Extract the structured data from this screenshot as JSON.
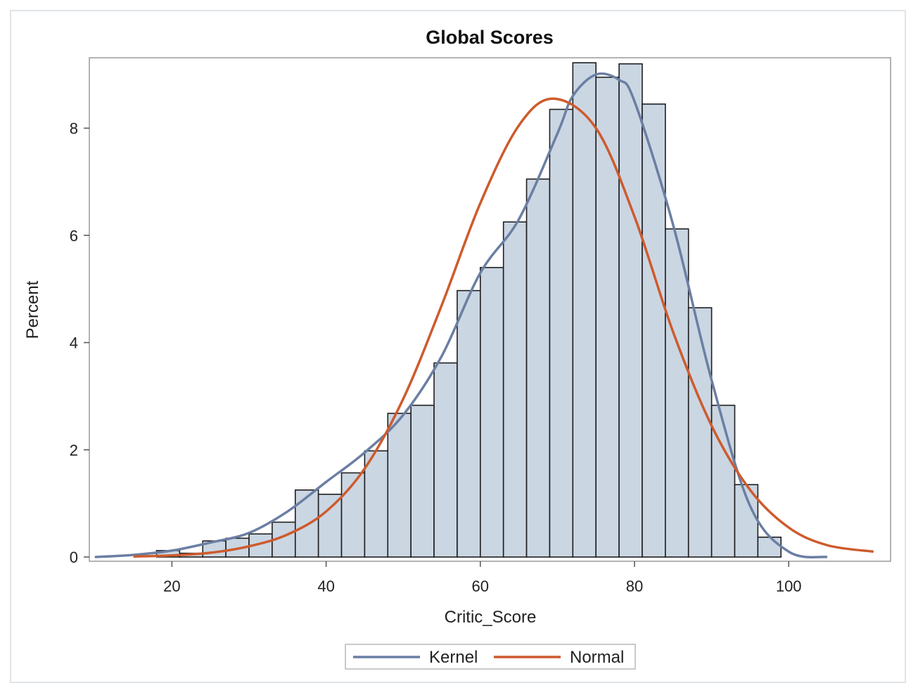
{
  "chart_data": {
    "type": "bar",
    "title": "Global Scores",
    "xlabel": "Critic_Score",
    "ylabel": "Percent",
    "xlim": [
      9,
      113
    ],
    "ylim": [
      0,
      9.3
    ],
    "xticks": [
      20,
      40,
      60,
      80,
      100
    ],
    "yticks": [
      0,
      2,
      4,
      6,
      8
    ],
    "grid": false,
    "legend_position": "bottom",
    "bin_width": 3,
    "bins": [
      {
        "start": 15,
        "end": 18,
        "value": 0.0
      },
      {
        "start": 18,
        "end": 21,
        "value": 0.12
      },
      {
        "start": 21,
        "end": 24,
        "value": 0.07
      },
      {
        "start": 24,
        "end": 27,
        "value": 0.3
      },
      {
        "start": 27,
        "end": 30,
        "value": 0.35
      },
      {
        "start": 30,
        "end": 33,
        "value": 0.43
      },
      {
        "start": 33,
        "end": 36,
        "value": 0.65
      },
      {
        "start": 36,
        "end": 39,
        "value": 1.25
      },
      {
        "start": 39,
        "end": 42,
        "value": 1.17
      },
      {
        "start": 42,
        "end": 45,
        "value": 1.57
      },
      {
        "start": 45,
        "end": 48,
        "value": 1.98
      },
      {
        "start": 48,
        "end": 51,
        "value": 2.68
      },
      {
        "start": 51,
        "end": 54,
        "value": 2.83
      },
      {
        "start": 54,
        "end": 57,
        "value": 3.62
      },
      {
        "start": 57,
        "end": 60,
        "value": 4.97
      },
      {
        "start": 60,
        "end": 63,
        "value": 5.4
      },
      {
        "start": 63,
        "end": 66,
        "value": 6.25
      },
      {
        "start": 66,
        "end": 69,
        "value": 7.05
      },
      {
        "start": 69,
        "end": 72,
        "value": 8.35
      },
      {
        "start": 72,
        "end": 75,
        "value": 9.22
      },
      {
        "start": 75,
        "end": 78,
        "value": 8.95
      },
      {
        "start": 78,
        "end": 81,
        "value": 9.2
      },
      {
        "start": 81,
        "end": 84,
        "value": 8.45
      },
      {
        "start": 84,
        "end": 87,
        "value": 6.12
      },
      {
        "start": 87,
        "end": 90,
        "value": 4.65
      },
      {
        "start": 90,
        "end": 93,
        "value": 2.83
      },
      {
        "start": 93,
        "end": 96,
        "value": 1.35
      },
      {
        "start": 96,
        "end": 99,
        "value": 0.37
      }
    ],
    "series": [
      {
        "name": "Kernel",
        "type": "line",
        "color": "#6b7fa3",
        "x": [
          10,
          15,
          20,
          25,
          30,
          35,
          40,
          45,
          50,
          55,
          60,
          65,
          70,
          72,
          75,
          78,
          80,
          85,
          90,
          95,
          100,
          105
        ],
        "y": [
          0.0,
          0.04,
          0.12,
          0.27,
          0.45,
          0.85,
          1.4,
          1.95,
          2.65,
          3.75,
          5.3,
          6.3,
          7.9,
          8.6,
          9.0,
          8.9,
          8.5,
          6.2,
          3.3,
          0.95,
          0.1,
          0.0
        ]
      },
      {
        "name": "Normal",
        "type": "line",
        "color": "#cd5b2d",
        "x": [
          15,
          20,
          25,
          30,
          35,
          40,
          45,
          50,
          55,
          60,
          65,
          69.5,
          75,
          80,
          85,
          90,
          95,
          100,
          105,
          111
        ],
        "y": [
          0.01,
          0.03,
          0.08,
          0.2,
          0.42,
          0.85,
          1.65,
          2.95,
          4.7,
          6.6,
          8.05,
          8.55,
          8.0,
          6.35,
          4.2,
          2.45,
          1.25,
          0.55,
          0.22,
          0.1
        ]
      }
    ],
    "bar_fill": "#cbd6e3",
    "bar_stroke": "#1e1e1e"
  }
}
